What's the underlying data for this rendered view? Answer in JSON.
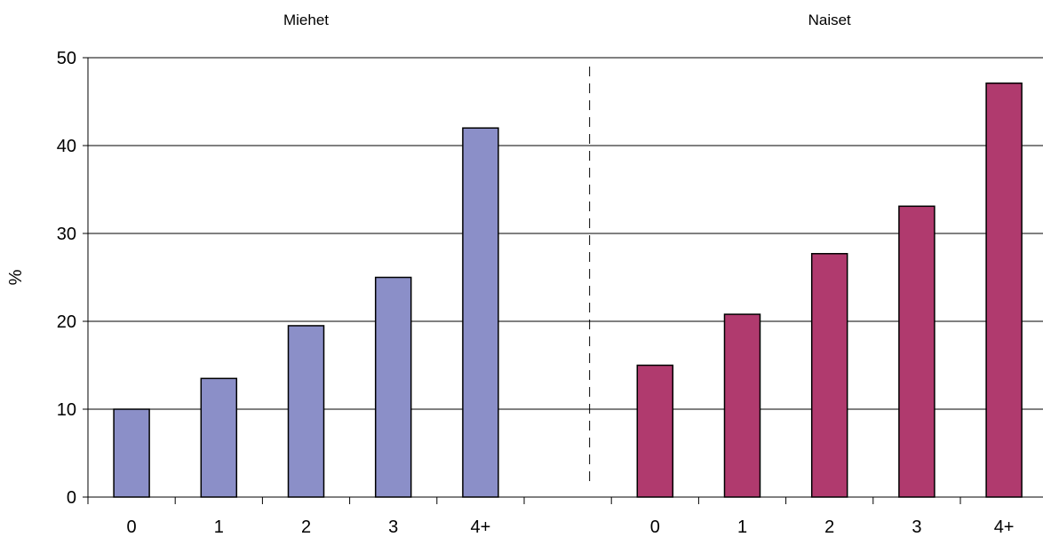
{
  "chart_data": {
    "type": "bar",
    "ylabel": "%",
    "ylim": [
      0,
      50
    ],
    "yticks": [
      0,
      10,
      20,
      30,
      40,
      50
    ],
    "grid": true,
    "panels": [
      {
        "title": "Miehet",
        "categories": [
          "0",
          "1",
          "2",
          "3",
          "4+"
        ],
        "values": [
          10,
          13.5,
          19.5,
          25,
          42
        ],
        "color": "#8b8fc8"
      },
      {
        "title": "Naiset",
        "categories": [
          "0",
          "1",
          "2",
          "3",
          "4+"
        ],
        "values": [
          15,
          20.8,
          27.7,
          33.1,
          47.1
        ],
        "color": "#b03a6e"
      }
    ]
  }
}
